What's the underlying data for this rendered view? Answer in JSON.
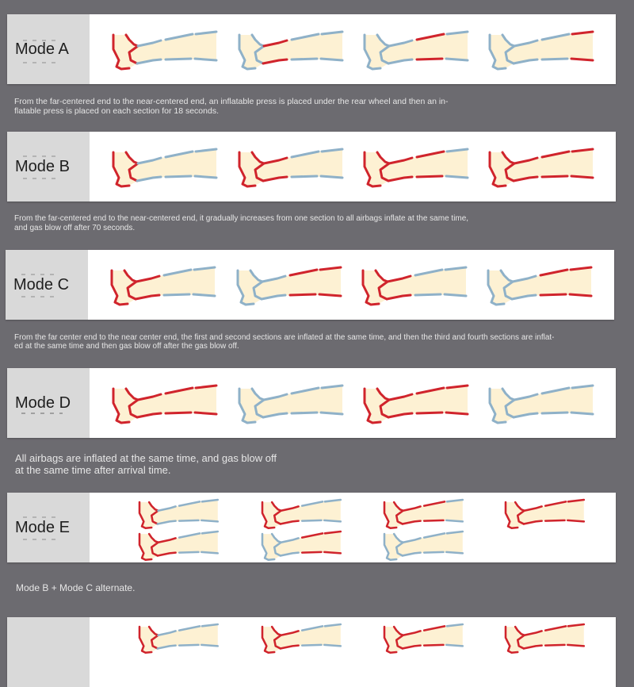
{
  "colors": {
    "active": "#d0242c",
    "idle": "#8fb1c8",
    "fill": "#fdf1d3"
  },
  "modes": [
    {
      "label": "Mode A",
      "description": [
        "From the far-centered end to the near-centered end, an inflatable press is placed under the rear wheel and then an in-",
        "flatable press is placed on each section for 18 seconds."
      ],
      "legs": [
        [
          1,
          0,
          0,
          0
        ],
        [
          0,
          1,
          0,
          0
        ],
        [
          0,
          0,
          1,
          0
        ],
        [
          0,
          0,
          0,
          1
        ]
      ]
    },
    {
      "label": "Mode B",
      "description": [
        "From the far-centered end to the near-centered end, it gradually increases from one section to all airbags inflate at the same time,",
        "and gas blow off after 70 seconds."
      ],
      "legs": [
        [
          1,
          0,
          0,
          0
        ],
        [
          1,
          1,
          0,
          0
        ],
        [
          1,
          1,
          1,
          0
        ],
        [
          1,
          1,
          1,
          1
        ]
      ]
    },
    {
      "label": "Mode C",
      "description": [
        "From the far center end to the near center end, the first and second sections are inflated at the same time, and then the third and fourth sections are inflat-",
        "ed at the same time and then gas blow off after the gas blow off."
      ],
      "legs": [
        [
          1,
          1,
          0,
          0
        ],
        [
          0,
          0,
          1,
          1
        ],
        [
          1,
          1,
          0,
          0
        ],
        [
          0,
          0,
          1,
          1
        ]
      ]
    },
    {
      "label": "Mode D",
      "description": [
        "All airbags are inflated at the same time, and gas blow off",
        "at the same time after arrival time."
      ],
      "legs": [
        [
          1,
          1,
          1,
          1
        ],
        [
          0,
          0,
          0,
          0
        ],
        [
          1,
          1,
          1,
          1
        ],
        [
          0,
          0,
          0,
          0
        ]
      ]
    },
    {
      "label": "Mode E",
      "description": [
        "Mode B + Mode C alternate."
      ],
      "legs_top": [
        [
          1,
          0,
          0,
          0
        ],
        [
          1,
          1,
          0,
          0
        ],
        [
          1,
          1,
          1,
          0
        ],
        [
          1,
          1,
          1,
          1
        ]
      ],
      "legs_bottom": [
        [
          1,
          1,
          0,
          0
        ],
        [
          0,
          0,
          1,
          1
        ],
        [
          0,
          0,
          0,
          0
        ]
      ]
    }
  ]
}
